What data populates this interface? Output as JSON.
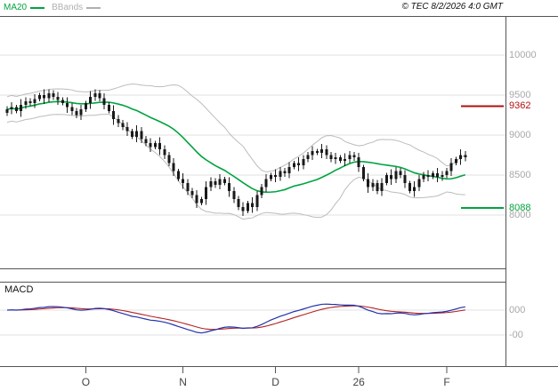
{
  "header": {
    "legend": [
      {
        "label": "MA20",
        "color": "#00a33f"
      },
      {
        "label": "BBands",
        "color": "#b0b0b0"
      }
    ],
    "copyright": "© TEC 8/2/2026 4:0 GMT"
  },
  "macd_panel": {
    "label": "MACD",
    "gridlines": [
      {
        "label": "000",
        "value": 0
      },
      {
        "label": "-00",
        "value": -300
      }
    ]
  },
  "colors": {
    "background": "#ffffff",
    "grid": "#e2e2e2",
    "border": "#555555",
    "candle": "#1a1a1a",
    "axis_label": "#a8a8a8",
    "month_label": "#444444"
  },
  "chart_data": {
    "type": "candlestick",
    "title": "",
    "y_ticks": [
      {
        "label": "10000",
        "value": 10000
      },
      {
        "label": "9500",
        "value": 9500
      },
      {
        "label": "9000",
        "value": 9000
      },
      {
        "label": "8500",
        "value": 8500
      },
      {
        "label": "8000",
        "value": 8000
      }
    ],
    "levels": [
      {
        "label": "9362",
        "value": 9362,
        "color": "#b01010"
      },
      {
        "label": "8088",
        "value": 8088,
        "color": "#00a33f"
      }
    ],
    "x_ticks": [
      {
        "label": "O",
        "index": 17
      },
      {
        "label": "N",
        "index": 38
      },
      {
        "label": "D",
        "index": 58
      },
      {
        "label": "26",
        "index": 76
      },
      {
        "label": "F",
        "index": 95
      }
    ],
    "overlays": [
      {
        "name": "MA20",
        "kind": "sma",
        "period": 20,
        "color": "#00a33f"
      },
      {
        "name": "BBands",
        "kind": "bollinger",
        "period": 20,
        "stddev": 2,
        "color": "#bcbcbc"
      }
    ],
    "macd": {
      "fast_period": 12,
      "slow_period": 26,
      "signal_period": 9,
      "line_color": "#2233aa",
      "signal_color": "#b22222"
    },
    "ohlc": [
      [
        9280,
        9360,
        9240,
        9320
      ],
      [
        9320,
        9410,
        9260,
        9350
      ],
      [
        9350,
        9380,
        9270,
        9300
      ],
      [
        9300,
        9450,
        9230,
        9380
      ],
      [
        9380,
        9470,
        9330,
        9420
      ],
      [
        9420,
        9460,
        9360,
        9400
      ],
      [
        9400,
        9510,
        9340,
        9450
      ],
      [
        9450,
        9530,
        9420,
        9500
      ],
      [
        9500,
        9570,
        9390,
        9460
      ],
      [
        9460,
        9570,
        9410,
        9520
      ],
      [
        9520,
        9560,
        9440,
        9480
      ],
      [
        9480,
        9540,
        9380,
        9440
      ],
      [
        9440,
        9470,
        9370,
        9400
      ],
      [
        9400,
        9470,
        9280,
        9350
      ],
      [
        9350,
        9400,
        9250,
        9300
      ],
      [
        9300,
        9340,
        9210,
        9250
      ],
      [
        9250,
        9380,
        9190,
        9320
      ],
      [
        9320,
        9430,
        9290,
        9400
      ],
      [
        9400,
        9550,
        9330,
        9480
      ],
      [
        9480,
        9570,
        9430,
        9520
      ],
      [
        9520,
        9560,
        9420,
        9460
      ],
      [
        9460,
        9520,
        9320,
        9380
      ],
      [
        9380,
        9410,
        9270,
        9300
      ],
      [
        9300,
        9370,
        9130,
        9200
      ],
      [
        9200,
        9250,
        9100,
        9150
      ],
      [
        9150,
        9190,
        9060,
        9100
      ],
      [
        9100,
        9160,
        8990,
        9050
      ],
      [
        9050,
        9080,
        8950,
        8980
      ],
      [
        8980,
        9120,
        8910,
        9050
      ],
      [
        9050,
        9100,
        8900,
        8950
      ],
      [
        8950,
        8990,
        8860,
        8900
      ],
      [
        8900,
        8960,
        8790,
        8850
      ],
      [
        8850,
        8930,
        8820,
        8900
      ],
      [
        8900,
        8970,
        8750,
        8820
      ],
      [
        8820,
        8870,
        8700,
        8750
      ],
      [
        8750,
        8790,
        8610,
        8650
      ],
      [
        8650,
        8710,
        8490,
        8550
      ],
      [
        8550,
        8580,
        8420,
        8450
      ],
      [
        8450,
        8520,
        8330,
        8400
      ],
      [
        8400,
        8450,
        8250,
        8300
      ],
      [
        8300,
        8340,
        8210,
        8250
      ],
      [
        8250,
        8310,
        8090,
        8150
      ],
      [
        8150,
        8230,
        8120,
        8200
      ],
      [
        8200,
        8420,
        8130,
        8350
      ],
      [
        8350,
        8470,
        8300,
        8420
      ],
      [
        8420,
        8460,
        8340,
        8380
      ],
      [
        8380,
        8510,
        8320,
        8450
      ],
      [
        8450,
        8480,
        8370,
        8400
      ],
      [
        8400,
        8470,
        8230,
        8300
      ],
      [
        8300,
        8350,
        8150,
        8200
      ],
      [
        8200,
        8240,
        8060,
        8100
      ],
      [
        8100,
        8160,
        7990,
        8050
      ],
      [
        8050,
        8180,
        8020,
        8150
      ],
      [
        8150,
        8220,
        8030,
        8100
      ],
      [
        8100,
        8300,
        8050,
        8250
      ],
      [
        8250,
        8390,
        8210,
        8350
      ],
      [
        8350,
        8510,
        8290,
        8450
      ],
      [
        8450,
        8530,
        8420,
        8500
      ],
      [
        8500,
        8570,
        8410,
        8480
      ],
      [
        8480,
        8600,
        8430,
        8550
      ],
      [
        8550,
        8590,
        8480,
        8520
      ],
      [
        8520,
        8660,
        8460,
        8600
      ],
      [
        8600,
        8680,
        8570,
        8650
      ],
      [
        8650,
        8720,
        8550,
        8620
      ],
      [
        8620,
        8750,
        8570,
        8700
      ],
      [
        8700,
        8790,
        8660,
        8750
      ],
      [
        8750,
        8860,
        8690,
        8800
      ],
      [
        8800,
        8830,
        8750,
        8780
      ],
      [
        8780,
        8890,
        8710,
        8820
      ],
      [
        8820,
        8870,
        8700,
        8750
      ],
      [
        8750,
        8790,
        8660,
        8700
      ],
      [
        8700,
        8780,
        8640,
        8720
      ],
      [
        8720,
        8750,
        8650,
        8680
      ],
      [
        8680,
        8770,
        8610,
        8700
      ],
      [
        8700,
        8800,
        8650,
        8750
      ],
      [
        8750,
        8790,
        8680,
        8720
      ],
      [
        8720,
        8780,
        8540,
        8600
      ],
      [
        8600,
        8630,
        8420,
        8450
      ],
      [
        8450,
        8520,
        8280,
        8350
      ],
      [
        8350,
        8450,
        8300,
        8400
      ],
      [
        8400,
        8440,
        8260,
        8300
      ],
      [
        8300,
        8460,
        8240,
        8400
      ],
      [
        8400,
        8530,
        8370,
        8500
      ],
      [
        8500,
        8570,
        8380,
        8450
      ],
      [
        8450,
        8600,
        8400,
        8550
      ],
      [
        8550,
        8590,
        8460,
        8500
      ],
      [
        8500,
        8560,
        8340,
        8400
      ],
      [
        8400,
        8430,
        8270,
        8300
      ],
      [
        8300,
        8420,
        8230,
        8350
      ],
      [
        8350,
        8500,
        8300,
        8450
      ],
      [
        8450,
        8540,
        8410,
        8500
      ],
      [
        8500,
        8560,
        8420,
        8480
      ],
      [
        8480,
        8550,
        8450,
        8520
      ],
      [
        8520,
        8590,
        8410,
        8480
      ],
      [
        8480,
        8550,
        8430,
        8500
      ],
      [
        8500,
        8590,
        8460,
        8550
      ],
      [
        8550,
        8710,
        8490,
        8650
      ],
      [
        8650,
        8730,
        8620,
        8700
      ],
      [
        8700,
        8820,
        8630,
        8750
      ],
      [
        8750,
        8800,
        8670,
        8720
      ]
    ]
  }
}
